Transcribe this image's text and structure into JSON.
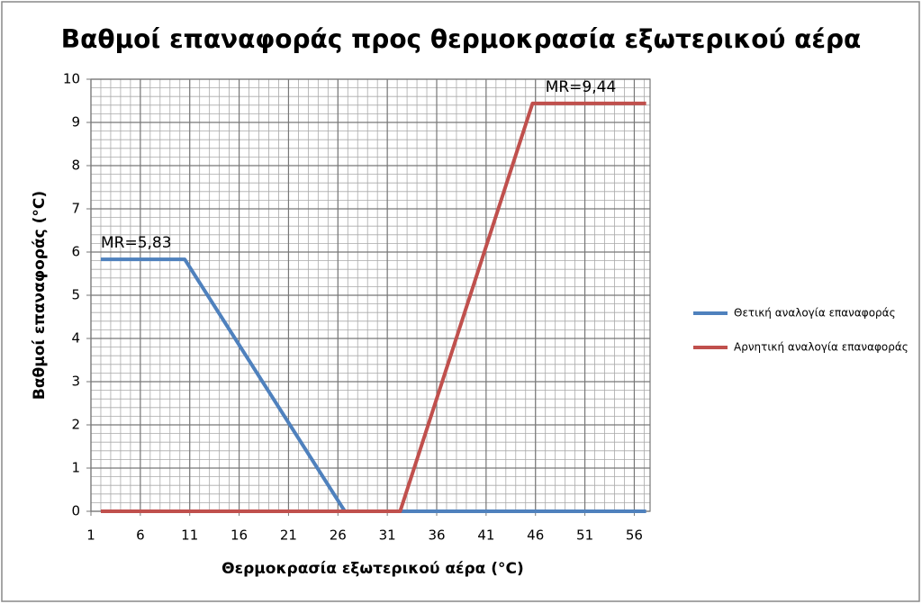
{
  "chart_data": {
    "type": "line",
    "title": "Βαθμοί επαναφοράς προς θερμοκρασία εξωτερικού αέρα",
    "x_label": "Θερμοκρασία εξωτερικού αέρα (°C)",
    "y_label": "Βαθμοί επαναφοράς (°C)",
    "xlim": [
      1,
      57.6
    ],
    "xticks": [
      1,
      6,
      11,
      16,
      21,
      26,
      31,
      36,
      41,
      46,
      51,
      56
    ],
    "ylim": [
      0,
      10
    ],
    "yticks": [
      0,
      1,
      2,
      3,
      4,
      5,
      6,
      7,
      8,
      9,
      10
    ],
    "grid": true,
    "series": [
      {
        "name": "Θετική αναλογία επαναφοράς",
        "color": "#4f81bd",
        "x": [
          2,
          10.5,
          26.7,
          57.2
        ],
        "values": [
          5.83,
          5.83,
          0,
          0
        ]
      },
      {
        "name": "Αρνητική αναλογία επαναφοράς",
        "color": "#c0504d",
        "x": [
          2,
          32.3,
          45.7,
          57.2
        ],
        "values": [
          0,
          0,
          9.44,
          9.44
        ]
      }
    ],
    "annotations": [
      {
        "text": "MR=5,83",
        "x": 2,
        "y": 5.83
      },
      {
        "text": "MR=9,44",
        "x": 47,
        "y": 9.44
      }
    ],
    "legend": "right"
  }
}
